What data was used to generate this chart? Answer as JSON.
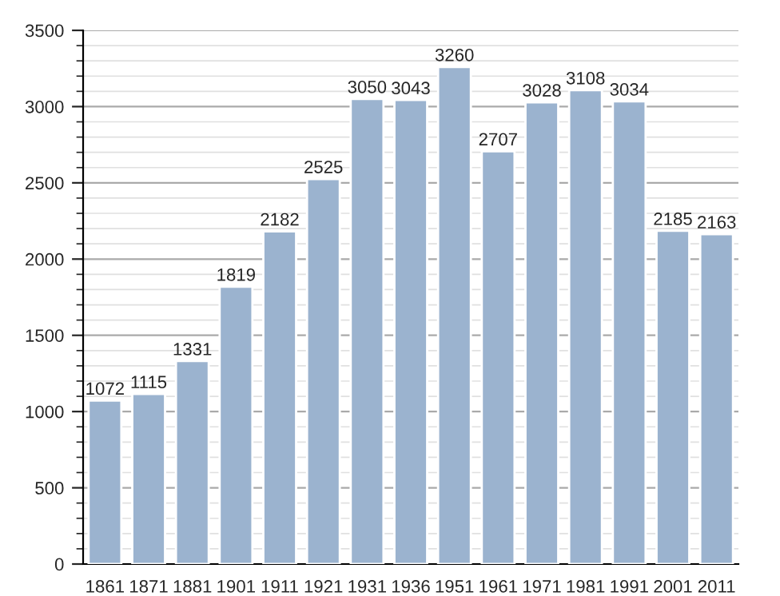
{
  "chart_data": {
    "type": "bar",
    "categories": [
      "1861",
      "1871",
      "1881",
      "1901",
      "1911",
      "1921",
      "1931",
      "1936",
      "1951",
      "1961",
      "1971",
      "1981",
      "1991",
      "2001",
      "2011"
    ],
    "values": [
      1072,
      1115,
      1331,
      1819,
      2182,
      2525,
      3050,
      3043,
      3260,
      2707,
      3028,
      3108,
      3034,
      2185,
      2163
    ],
    "color": "#9bb3cf",
    "ylim": [
      0,
      3500
    ],
    "yticks": [
      0,
      500,
      1000,
      1500,
      2000,
      2500,
      3000,
      3500
    ],
    "grid": "y",
    "data_labels": true
  }
}
